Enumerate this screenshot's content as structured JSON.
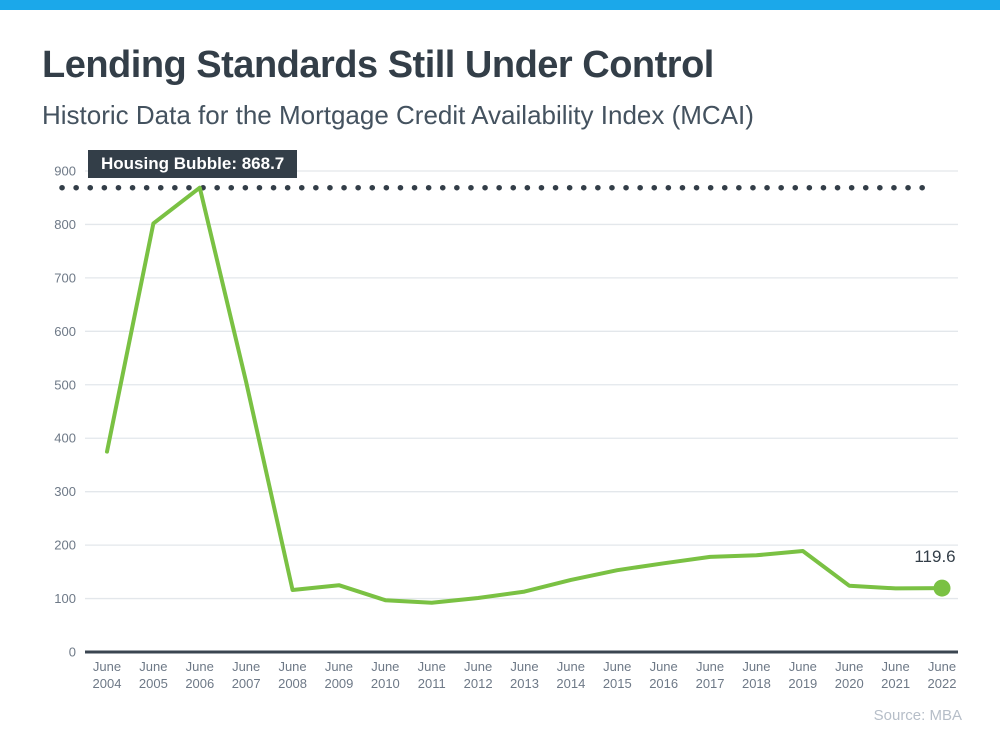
{
  "header": {
    "title": "Lending Standards Still Under Control",
    "subtitle": "Historic Data for the Mortgage Credit Availability Index (MCAI)"
  },
  "chart_data": {
    "type": "line",
    "title": "Lending Standards Still Under Control",
    "subtitle": "Historic Data for the Mortgage Credit Availability Index (MCAI)",
    "categories": [
      "June 2004",
      "June 2005",
      "June 2006",
      "June 2007",
      "June 2008",
      "June 2009",
      "June 2010",
      "June 2011",
      "June 2012",
      "June 2013",
      "June 2014",
      "June 2015",
      "June 2016",
      "June 2017",
      "June 2018",
      "June 2019",
      "June 2020",
      "June 2021",
      "June 2022"
    ],
    "series": [
      {
        "name": "Mortgage Credit Availability Index",
        "values": [
          375,
          802,
          868.7,
          505,
          116,
          125,
          97,
          92,
          101,
          113,
          135,
          153,
          166,
          178,
          181,
          189,
          124,
          119,
          119.6
        ]
      }
    ],
    "y_ticks": [
      0,
      100,
      200,
      300,
      400,
      500,
      600,
      700,
      800,
      900
    ],
    "ylim": [
      0,
      900
    ],
    "grid": true,
    "legend_position": "none",
    "reference_line": {
      "value": 868.7,
      "label": "Housing Bubble: 868.7",
      "style": "dotted"
    },
    "end_point_label": "119.6",
    "source": "Source: MBA"
  },
  "colors": {
    "top_bar": "#1BA8EA",
    "title": "#333E48",
    "subtitle": "#44525F",
    "line_green": "#7AC143",
    "reference_dark": "#333E48",
    "grid_line": "#E3E7EB",
    "axis_line": "#3A4550",
    "tick_label": "#6E7987",
    "source_text": "#B6BEC8"
  }
}
